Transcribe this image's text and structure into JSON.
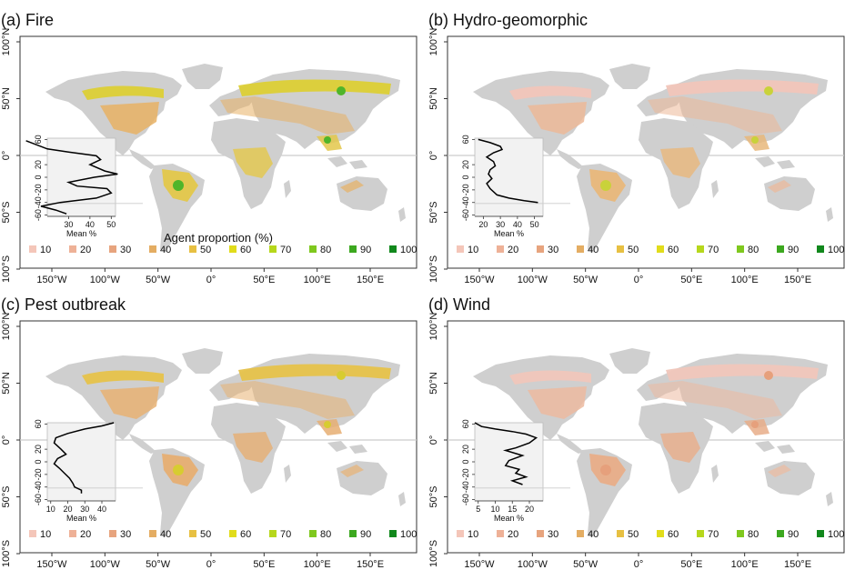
{
  "legend": {
    "title": "Agent proportion (%)",
    "levels": [
      "10",
      "20",
      "30",
      "40",
      "50",
      "60",
      "70",
      "80",
      "90",
      "100"
    ],
    "colors": [
      "#f4c6b9",
      "#eeb197",
      "#e7a47e",
      "#e4ad63",
      "#e7c042",
      "#e1dc1b",
      "#b6d71c",
      "#7fc81e",
      "#3ca81f",
      "#11881c"
    ]
  },
  "axes": {
    "lon_ticks": [
      "150°W",
      "100°W",
      "50°W",
      "0°",
      "50°E",
      "100°E",
      "150°E"
    ],
    "lat_ticks": [
      "100°N",
      "50°N",
      "0°",
      "50°S",
      "100°S"
    ],
    "lon_values": [
      -150,
      -100,
      -50,
      0,
      50,
      100,
      150
    ],
    "lat_values": [
      100,
      50,
      0,
      -50,
      -100
    ]
  },
  "inset": {
    "ylabel": "Mean %",
    "lat_ticks": [
      "60",
      "20",
      "0",
      "-20",
      "-40",
      "-60"
    ],
    "lat_values": [
      60,
      20,
      0,
      -20,
      -40,
      -60
    ]
  },
  "colors": {
    "land": "#cfcfcf",
    "ocean": "#ffffff",
    "equator": "#cccccc",
    "inset_bg": "#f2f2f2",
    "profile": "#000000"
  },
  "panels": [
    {
      "title": "(a) Fire",
      "show_legend_title": true,
      "boreal": "#dccf35",
      "temperate": "#e7b164",
      "tropics": "#e3c74a",
      "hotspot": "#4fb52a",
      "inset_xticks": [
        "30",
        "40",
        "50"
      ],
      "inset_xvalues": [
        30,
        40,
        50
      ],
      "inset_xrange": [
        20,
        52
      ],
      "profile": [
        [
          10,
          58
        ],
        [
          20,
          45
        ],
        [
          30,
          40
        ],
        [
          43,
          34
        ],
        [
          45,
          28
        ],
        [
          40,
          20
        ],
        [
          47,
          10
        ],
        [
          53,
          5
        ],
        [
          42,
          0
        ],
        [
          30,
          -8
        ],
        [
          34,
          -14
        ],
        [
          48,
          -18
        ],
        [
          50,
          -25
        ],
        [
          43,
          -33
        ],
        [
          26,
          -40
        ],
        [
          17,
          -46
        ],
        [
          24,
          -52
        ],
        [
          29,
          -58
        ]
      ]
    },
    {
      "title": "(b) Hydro-geomorphic",
      "show_legend_title": false,
      "boreal": "#f1c5b9",
      "temperate": "#ecb898",
      "tropics": "#e8b77a",
      "hotspot": "#c9d23a",
      "inset_xticks": [
        "20",
        "30",
        "40",
        "50"
      ],
      "inset_xvalues": [
        20,
        30,
        40,
        50
      ],
      "inset_xrange": [
        15,
        55
      ],
      "profile": [
        [
          17,
          60
        ],
        [
          24,
          55
        ],
        [
          30,
          49
        ],
        [
          31,
          44
        ],
        [
          26,
          39
        ],
        [
          22,
          32
        ],
        [
          26,
          25
        ],
        [
          27,
          18
        ],
        [
          24,
          12
        ],
        [
          23,
          5
        ],
        [
          25,
          -2
        ],
        [
          22,
          -10
        ],
        [
          24,
          -18
        ],
        [
          28,
          -28
        ],
        [
          35,
          -33
        ],
        [
          44,
          -37
        ],
        [
          52,
          -40
        ]
      ]
    },
    {
      "title": "(c) Pest outbreak",
      "show_legend_title": false,
      "boreal": "#e6c24a",
      "temperate": "#e8b273",
      "tropics": "#e6ae72",
      "hotspot": "#d7cc31",
      "inset_xticks": [
        "10",
        "20",
        "30",
        "40"
      ],
      "inset_xvalues": [
        10,
        20,
        30,
        40
      ],
      "inset_xrange": [
        8,
        48
      ],
      "profile": [
        [
          47,
          62
        ],
        [
          40,
          57
        ],
        [
          30,
          52
        ],
        [
          20,
          45
        ],
        [
          13,
          38
        ],
        [
          12,
          30
        ],
        [
          16,
          20
        ],
        [
          19,
          12
        ],
        [
          14,
          5
        ],
        [
          12,
          -3
        ],
        [
          15,
          -10
        ],
        [
          18,
          -18
        ],
        [
          21,
          -26
        ],
        [
          23,
          -34
        ],
        [
          24,
          -40
        ],
        [
          28,
          -45
        ],
        [
          28,
          -50
        ]
      ]
    },
    {
      "title": "(d) Wind",
      "show_legend_title": false,
      "boreal": "#f0c6ba",
      "temperate": "#ecbaa0",
      "tropics": "#e8ad88",
      "hotspot": "#e6a07c",
      "inset_xticks": [
        "5",
        "10",
        "15",
        "20"
      ],
      "inset_xvalues": [
        5,
        10,
        15,
        20
      ],
      "inset_xrange": [
        4,
        24
      ],
      "profile": [
        [
          4,
          62
        ],
        [
          6,
          56
        ],
        [
          10,
          52
        ],
        [
          15,
          48
        ],
        [
          19,
          44
        ],
        [
          22,
          38
        ],
        [
          20,
          30
        ],
        [
          16,
          22
        ],
        [
          13,
          18
        ],
        [
          18,
          10
        ],
        [
          14,
          2
        ],
        [
          13,
          -6
        ],
        [
          17,
          -12
        ],
        [
          16,
          -18
        ],
        [
          19,
          -24
        ],
        [
          15,
          -30
        ],
        [
          18,
          -36
        ]
      ]
    }
  ]
}
